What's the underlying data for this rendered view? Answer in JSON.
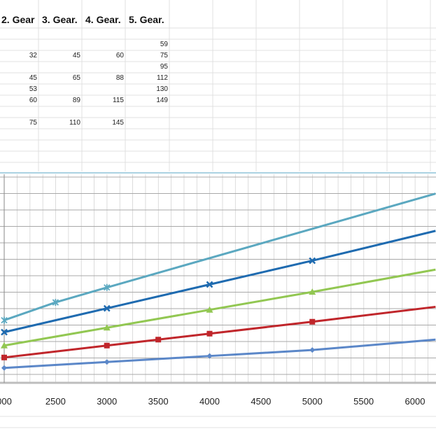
{
  "table": {
    "headers": [
      "2. Gear",
      "3. Gear.",
      "4. Gear.",
      "5. Gear."
    ],
    "rows": [
      [
        "",
        "",
        "",
        "59"
      ],
      [
        "32",
        "45",
        "60",
        "75"
      ],
      [
        "",
        "",
        "",
        "95"
      ],
      [
        "45",
        "65",
        "88",
        "112"
      ],
      [
        "53",
        "",
        "",
        "130"
      ],
      [
        "60",
        "89",
        "115",
        "149"
      ],
      [
        "",
        "",
        "",
        ""
      ],
      [
        "75",
        "110",
        "145",
        ""
      ]
    ]
  },
  "chart_data": {
    "type": "line",
    "x_ticks": [
      "000",
      "2500",
      "3000",
      "3500",
      "4000",
      "4500",
      "5000",
      "5500",
      "6000"
    ],
    "xlim": [
      1990,
      6200
    ],
    "ylim": [
      0,
      140
    ],
    "grid": true,
    "series": [
      {
        "color": "#5b87c8",
        "marker": "diamond",
        "x": [
          2000,
          3000,
          4000,
          5000,
          6200
        ],
        "y": [
          10,
          14,
          18,
          22,
          29
        ]
      },
      {
        "color": "#c0262b",
        "marker": "square",
        "x": [
          2000,
          3000,
          3500,
          4000,
          5000,
          6200
        ],
        "y": [
          17,
          25,
          29,
          33,
          41,
          51
        ]
      },
      {
        "color": "#92c752",
        "marker": "triangle",
        "x": [
          2000,
          3000,
          4000,
          5000,
          6200
        ],
        "y": [
          25,
          37,
          49,
          61,
          76
        ]
      },
      {
        "color": "#1f6bb0",
        "marker": "x",
        "x": [
          2000,
          3000,
          4000,
          5000,
          6200
        ],
        "y": [
          34,
          50,
          66,
          82,
          102
        ]
      },
      {
        "color": "#5ba8c0",
        "marker": "star",
        "x": [
          2000,
          2500,
          3000,
          6200
        ],
        "y": [
          42,
          54,
          64,
          127
        ]
      }
    ]
  }
}
